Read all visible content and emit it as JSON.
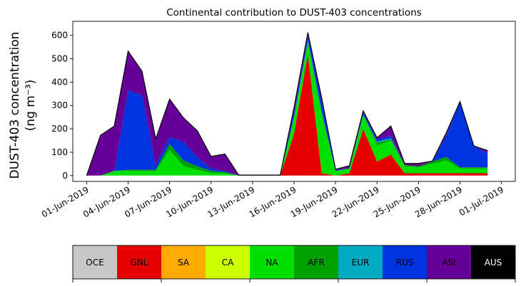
{
  "chart_data": {
    "type": "area",
    "stacked": true,
    "title": "Continental contribution to DUST-403 concentrations",
    "ylabel_line1": "DUST-403 concentration",
    "ylabel_line2": "(ng m⁻³)",
    "xlabel": "",
    "x_start": "2019-05-31",
    "x_end": "2019-07-02",
    "x": [
      "2019-06-01",
      "2019-06-02",
      "2019-06-03",
      "2019-06-04",
      "2019-06-05",
      "2019-06-06",
      "2019-06-07",
      "2019-06-08",
      "2019-06-09",
      "2019-06-10",
      "2019-06-11",
      "2019-06-12",
      "2019-06-13",
      "2019-06-14",
      "2019-06-15",
      "2019-06-16",
      "2019-06-17",
      "2019-06-18",
      "2019-06-19",
      "2019-06-20",
      "2019-06-21",
      "2019-06-22",
      "2019-06-23",
      "2019-06-24",
      "2019-06-25",
      "2019-06-26",
      "2019-06-27",
      "2019-06-28",
      "2019-06-29",
      "2019-06-30"
    ],
    "ylim": [
      -25,
      660
    ],
    "yticks": [
      0,
      100,
      200,
      300,
      400,
      500,
      600
    ],
    "xticks": [
      "2019-06-01",
      "2019-06-04",
      "2019-06-07",
      "2019-06-10",
      "2019-06-13",
      "2019-06-16",
      "2019-06-19",
      "2019-06-22",
      "2019-06-25",
      "2019-06-28",
      "2019-07-01"
    ],
    "xtick_labels": [
      "01-Jun-2019",
      "04-Jun-2019",
      "07-Jun-2019",
      "10-Jun-2019",
      "13-Jun-2019",
      "16-Jun-2019",
      "19-Jun-2019",
      "22-Jun-2019",
      "25-Jun-2019",
      "28-Jun-2019",
      "01-Jul-2019"
    ],
    "series": [
      {
        "name": "GNL",
        "color": "#e60000",
        "values": [
          0,
          0,
          0,
          0,
          0,
          0,
          0,
          0,
          0,
          0,
          0,
          0,
          0,
          0,
          0,
          180,
          520,
          10,
          0,
          10,
          200,
          60,
          90,
          10,
          10,
          10,
          10,
          10,
          10,
          10
        ]
      },
      {
        "name": "NA",
        "color": "#00e000",
        "values": [
          0,
          0,
          20,
          20,
          20,
          20,
          110,
          40,
          25,
          10,
          10,
          0,
          0,
          0,
          0,
          70,
          40,
          250,
          20,
          20,
          60,
          70,
          60,
          30,
          25,
          40,
          55,
          20,
          20,
          20
        ]
      },
      {
        "name": "AFR",
        "color": "#00a000",
        "values": [
          0,
          0,
          0,
          5,
          5,
          5,
          25,
          25,
          15,
          10,
          5,
          0,
          0,
          0,
          0,
          0,
          10,
          10,
          0,
          0,
          0,
          10,
          5,
          5,
          5,
          10,
          15,
          5,
          5,
          5
        ]
      },
      {
        "name": "EUR",
        "color": "#00aac0",
        "values": [
          0,
          0,
          0,
          0,
          0,
          0,
          0,
          0,
          0,
          0,
          0,
          0,
          0,
          0,
          0,
          0,
          10,
          5,
          0,
          0,
          0,
          5,
          5,
          0,
          0,
          0,
          0,
          0,
          0,
          0
        ]
      },
      {
        "name": "RUS",
        "color": "#0033e0",
        "values": [
          0,
          0,
          0,
          340,
          320,
          20,
          30,
          80,
          40,
          10,
          5,
          0,
          0,
          0,
          0,
          20,
          20,
          40,
          5,
          0,
          10,
          10,
          10,
          0,
          0,
          0,
          90,
          280,
          90,
          60
        ]
      },
      {
        "name": "ASI",
        "color": "#660099",
        "values": [
          0,
          170,
          190,
          165,
          100,
          110,
          160,
          100,
          110,
          50,
          70,
          0,
          0,
          0,
          0,
          20,
          10,
          15,
          0,
          10,
          5,
          5,
          40,
          5,
          10,
          0,
          10,
          0,
          0,
          10
        ]
      },
      {
        "name": "AUS",
        "color": "#000000",
        "values": [
          0,
          2,
          2,
          2,
          2,
          2,
          2,
          2,
          2,
          2,
          2,
          2,
          2,
          2,
          2,
          2,
          2,
          2,
          2,
          2,
          2,
          2,
          2,
          2,
          2,
          2,
          2,
          2,
          2,
          2
        ]
      }
    ],
    "legend": {
      "placement": "bottom",
      "items": [
        {
          "name": "OCE",
          "color": "#c8c8c8",
          "text_color": "#000000"
        },
        {
          "name": "GNL",
          "color": "#e60000",
          "text_color": "#000000"
        },
        {
          "name": "SA",
          "color": "#ffaa00",
          "text_color": "#000000"
        },
        {
          "name": "CA",
          "color": "#ccff00",
          "text_color": "#000000"
        },
        {
          "name": "NA",
          "color": "#00e000",
          "text_color": "#000000"
        },
        {
          "name": "AFR",
          "color": "#00a000",
          "text_color": "#000000"
        },
        {
          "name": "EUR",
          "color": "#00aac0",
          "text_color": "#000000"
        },
        {
          "name": "RUS",
          "color": "#0033e0",
          "text_color": "#000000"
        },
        {
          "name": "ASI",
          "color": "#660099",
          "text_color": "#000000"
        },
        {
          "name": "AUS",
          "color": "#000000",
          "text_color": "#ffffff"
        }
      ]
    },
    "grid": false
  }
}
